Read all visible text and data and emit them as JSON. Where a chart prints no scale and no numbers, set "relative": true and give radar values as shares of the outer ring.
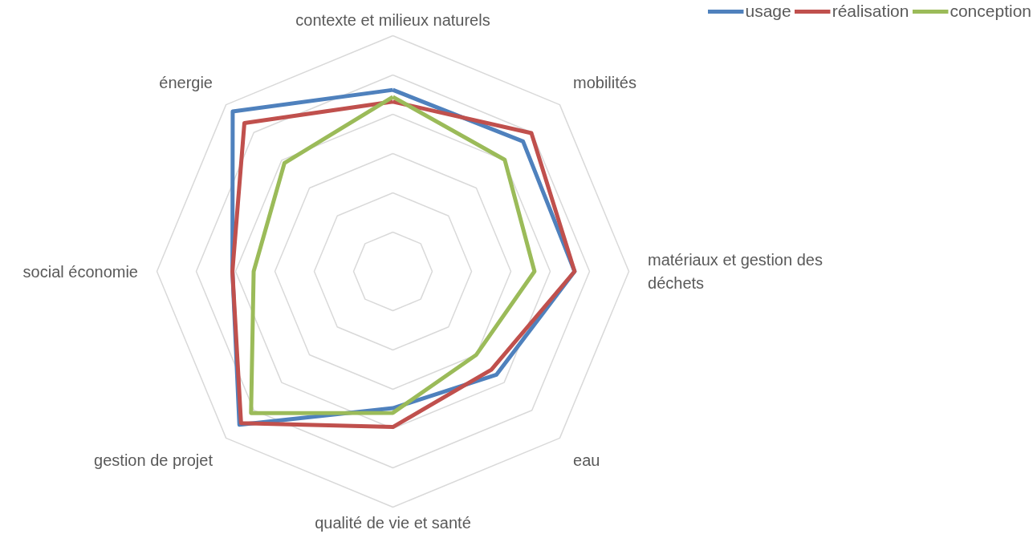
{
  "chart_data": {
    "type": "radar",
    "relative": true,
    "grid": true,
    "legend": "top right",
    "categories": [
      "contexte et milieux naturels",
      "mobilités",
      "matériaux et gestion des déchets",
      "eau",
      "qualité de vie et santé",
      "gestion de projet",
      "social économie",
      "énergie"
    ],
    "series": [
      {
        "name": "usage",
        "color": "#4f81bd",
        "values": [
          0.77,
          0.78,
          0.77,
          0.62,
          0.58,
          0.92,
          0.68,
          0.96
        ]
      },
      {
        "name": "réalisation",
        "color": "#c0504d",
        "values": [
          0.72,
          0.83,
          0.77,
          0.59,
          0.66,
          0.91,
          0.68,
          0.89
        ]
      },
      {
        "name": "conception",
        "color": "#9bbb59",
        "values": [
          0.74,
          0.67,
          0.6,
          0.5,
          0.6,
          0.85,
          0.59,
          0.65
        ]
      }
    ]
  }
}
